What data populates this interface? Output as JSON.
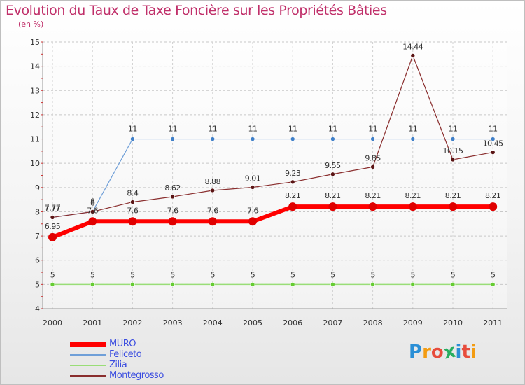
{
  "title": "Evolution du Taux de Taxe Foncière sur les Propriétés Bâties",
  "subtitle": "(en %)",
  "logo": {
    "text": "Proxiti",
    "colors": [
      "#2a8fd6",
      "#f39c12",
      "#e74c3c",
      "#27ae60",
      "#2a8fd6",
      "#e74c3c",
      "#f39c12"
    ]
  },
  "chart_data": {
    "type": "line",
    "title": "Evolution du Taux de Taxe Foncière sur les Propriétés Bâties",
    "ylabel": "(en %)",
    "xlabel": "",
    "categories": [
      "2000",
      "2001",
      "2002",
      "2003",
      "2004",
      "2005",
      "2006",
      "2007",
      "2008",
      "2009",
      "2010",
      "2011"
    ],
    "ylim": [
      4,
      15
    ],
    "yticks": [
      "4",
      "5",
      "6",
      "7",
      "8",
      "9",
      "10",
      "11",
      "12",
      "13",
      "14",
      "15"
    ],
    "grid": "dashed-horizontal",
    "series": [
      {
        "name": "MURO",
        "color": "#ff0000",
        "marker": "#e00000",
        "values": [
          6.95,
          7.6,
          7.6,
          7.6,
          7.6,
          7.6,
          8.21,
          8.21,
          8.21,
          8.21,
          8.21,
          8.21
        ],
        "labels": [
          "6.95",
          "7.6",
          "7.6",
          "7.6",
          "7.6",
          "7.6",
          "8.21",
          "8.21",
          "8.21",
          "8.21",
          "8.21",
          "8.21"
        ]
      },
      {
        "name": "Feliceto",
        "color": "#6f9fd8",
        "marker": "#3f7fc8",
        "values": [
          7.77,
          8,
          11,
          11,
          11,
          11,
          11,
          11,
          11,
          11,
          11,
          11
        ],
        "labels": [
          "7.77",
          "8",
          "11",
          "11",
          "11",
          "11",
          "11",
          "11",
          "11",
          "11",
          "11",
          "11"
        ]
      },
      {
        "name": "Zilia",
        "color": "#99dd77",
        "marker": "#66cc33",
        "values": [
          5,
          5,
          5,
          5,
          5,
          5,
          5,
          5,
          5,
          5,
          5,
          5
        ],
        "labels": [
          "5",
          "5",
          "5",
          "5",
          "5",
          "5",
          "5",
          "5",
          "5",
          "5",
          "5",
          "5"
        ]
      },
      {
        "name": "Montegrosso",
        "color": "#8a2e2e",
        "marker": "#5a1414",
        "values": [
          7.77,
          8,
          8.4,
          8.62,
          8.88,
          9.01,
          9.23,
          9.55,
          9.85,
          14.44,
          10.15,
          10.45
        ],
        "labels": [
          "7.77",
          "8",
          "8.4",
          "8.62",
          "8.88",
          "9.01",
          "9.23",
          "9.55",
          "9.85",
          "14.44",
          "10.15",
          "10.45"
        ]
      }
    ],
    "legend": "bottom-left"
  }
}
